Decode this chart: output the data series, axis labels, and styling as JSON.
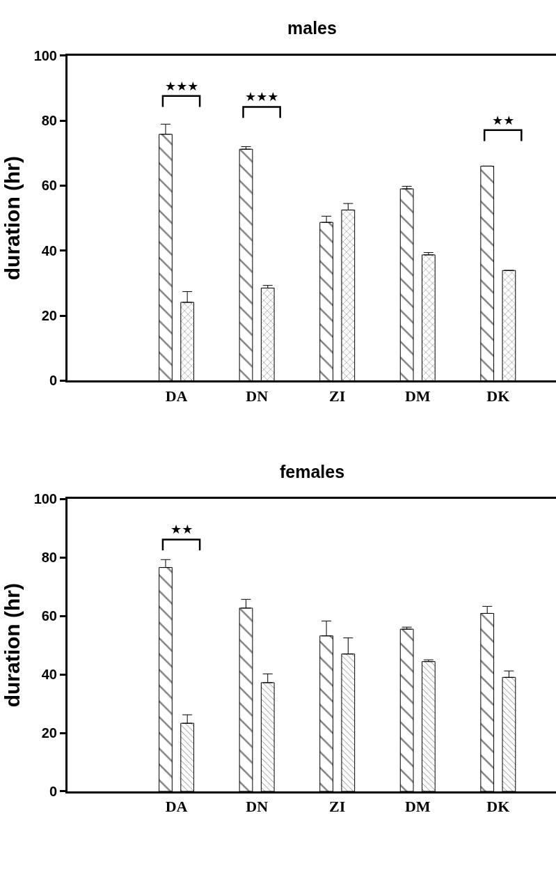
{
  "chart_data": [
    {
      "type": "bar",
      "title": "males",
      "ylabel": "duration (hr)",
      "categories": [
        "DA",
        "DN",
        "ZI",
        "DM",
        "DK"
      ],
      "ylim": [
        0,
        100
      ],
      "yticks": [
        0,
        20,
        40,
        60,
        80,
        100
      ],
      "series": [
        {
          "color": "#000000",
          "values": [
            75.8,
            71.2,
            48.7,
            59.0,
            66.0
          ],
          "errors": [
            [
              75.8,
              78.9
            ],
            [
              71.2,
              72.0
            ],
            [
              48.7,
              50.6
            ],
            [
              59.0,
              59.8
            ],
            null
          ]
        },
        {
          "color": "#000000",
          "values": [
            24.1,
            28.5,
            52.5,
            38.7,
            33.9
          ],
          "errors": [
            [
              24.1,
              27.4
            ],
            [
              28.5,
              29.3
            ],
            [
              52.5,
              54.5
            ],
            [
              38.7,
              39.4
            ],
            null
          ]
        }
      ],
      "annotations": [
        "★★★",
        "★★★",
        "★★"
      ]
    },
    {
      "type": "bar",
      "title": "females",
      "ylabel": "duration (hr)",
      "categories": [
        "DA",
        "DN",
        "ZI",
        "DM",
        "DK"
      ],
      "ylim": [
        0,
        100
      ],
      "yticks": [
        0,
        20,
        40,
        60,
        80,
        100
      ],
      "series": [
        {
          "color": "#000000",
          "values": [
            76.6,
            62.7,
            53.2,
            55.5,
            60.9
          ],
          "errors": [
            [
              76.6,
              79.3
            ],
            [
              62.7,
              65.7
            ],
            [
              53.2,
              58.3
            ],
            [
              55.5,
              56.2
            ],
            [
              60.9,
              63.3
            ]
          ]
        },
        {
          "color": "#000000",
          "values": [
            23.3,
            37.2,
            47.0,
            44.4,
            39.0
          ],
          "errors": [
            [
              23.3,
              26.2
            ],
            [
              37.2,
              40.2
            ],
            [
              47.0,
              52.5
            ],
            [
              44.4,
              45.0
            ],
            [
              39.0,
              41.2
            ]
          ]
        }
      ],
      "annotations": [
        "★★"
      ]
    }
  ]
}
